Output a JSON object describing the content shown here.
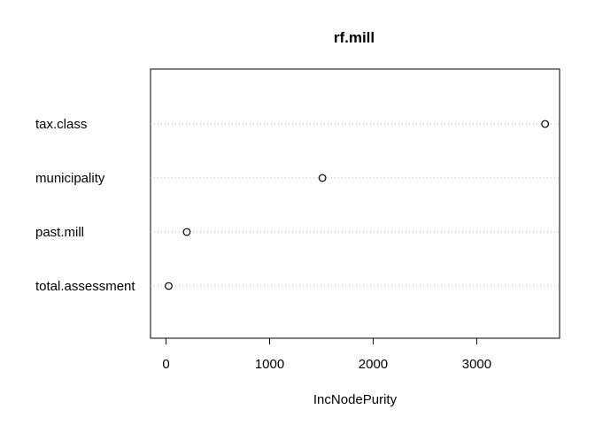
{
  "chart_data": {
    "type": "scatter",
    "variant": "dotchart",
    "title": "rf.mill",
    "xlabel": "IncNodePurity",
    "ylabel": "",
    "xlim": [
      -150,
      3800
    ],
    "x_ticks": [
      0,
      1000,
      2000,
      3000
    ],
    "grid": "dotted horizontal guides",
    "legend": "none",
    "categories": [
      "tax.class",
      "municipality",
      "past.mill",
      "total.assessment"
    ],
    "values": [
      3660,
      1510,
      200,
      25
    ]
  }
}
